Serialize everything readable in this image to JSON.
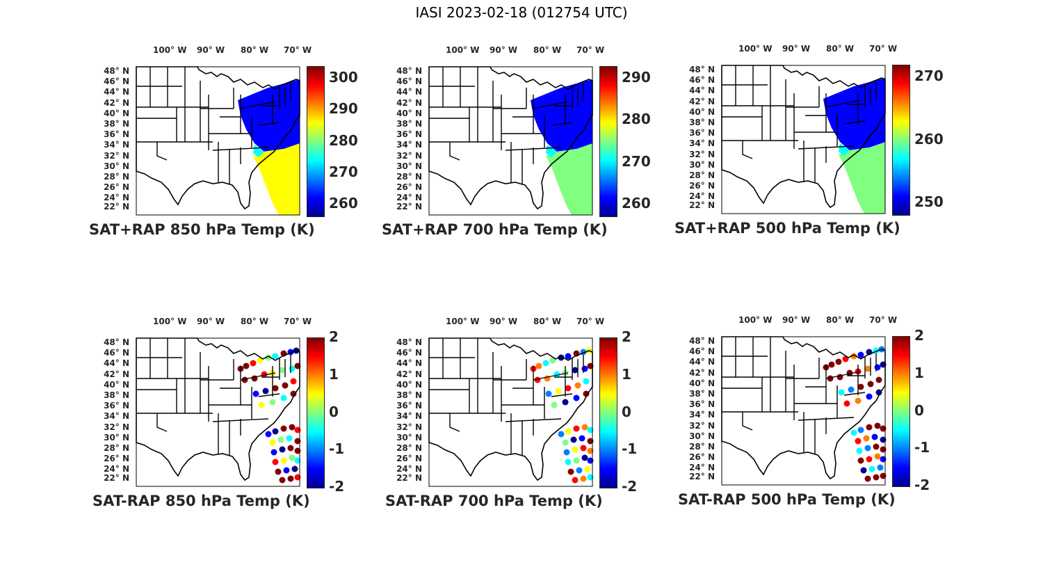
{
  "figure": {
    "title": "IASI 2023-02-18 (012754 UTC)"
  },
  "colormap": [
    "#00008f",
    "#0000ff",
    "#0080ff",
    "#00ffff",
    "#80ff80",
    "#ffff00",
    "#ff8000",
    "#ff0000",
    "#800000"
  ],
  "map": {
    "lon_labels": [
      "100° W",
      "90° W",
      "80° W",
      "70° W"
    ],
    "lat_labels": [
      "48° N",
      "46° N",
      "44° N",
      "42° N",
      "40° N",
      "38° N",
      "36° N",
      "34° N",
      "32° N",
      "30° N",
      "28° N",
      "26° N",
      "24° N",
      "22° N"
    ]
  },
  "panels": [
    {
      "caption": "SAT+RAP 850 hPa Temp (K)",
      "ticks": [
        "300",
        "290",
        "280",
        "270",
        "260"
      ],
      "kind": "field",
      "pressure_hpa": 850
    },
    {
      "caption": "SAT+RAP 700 hPa Temp (K)",
      "ticks": [
        "290",
        "280",
        "270",
        "260"
      ],
      "kind": "field",
      "pressure_hpa": 700
    },
    {
      "caption": "SAT+RAP 500 hPa Temp (K)",
      "ticks": [
        "270",
        "260",
        "250"
      ],
      "kind": "field",
      "pressure_hpa": 500
    },
    {
      "caption": "SAT-RAP 850 hPa Temp (K)",
      "ticks": [
        "2",
        "1",
        "0",
        "-1",
        "-2"
      ],
      "kind": "diff",
      "pressure_hpa": 850
    },
    {
      "caption": "SAT-RAP 700 hPa Temp (K)",
      "ticks": [
        "2",
        "1",
        "0",
        "-1",
        "-2"
      ],
      "kind": "diff",
      "pressure_hpa": 700
    },
    {
      "caption": "SAT-RAP 500 hPa Temp (K)",
      "ticks": [
        "2",
        "1",
        "0",
        "-1",
        "-2"
      ],
      "kind": "diff",
      "pressure_hpa": 500
    }
  ]
}
